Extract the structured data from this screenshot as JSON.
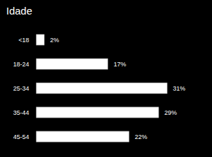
{
  "chart_data": {
    "type": "bar",
    "title": "Idade",
    "orientation": "horizontal",
    "categories": [
      "<18",
      "18-24",
      "25-34",
      "35-44",
      "45-54"
    ],
    "values": [
      2,
      17,
      31,
      29,
      22
    ],
    "value_labels": [
      "2%",
      "17%",
      "31%",
      "29%",
      "22%"
    ],
    "color": "#ffffff",
    "data_labels": true,
    "tick_labels": "y",
    "grid": false
  }
}
